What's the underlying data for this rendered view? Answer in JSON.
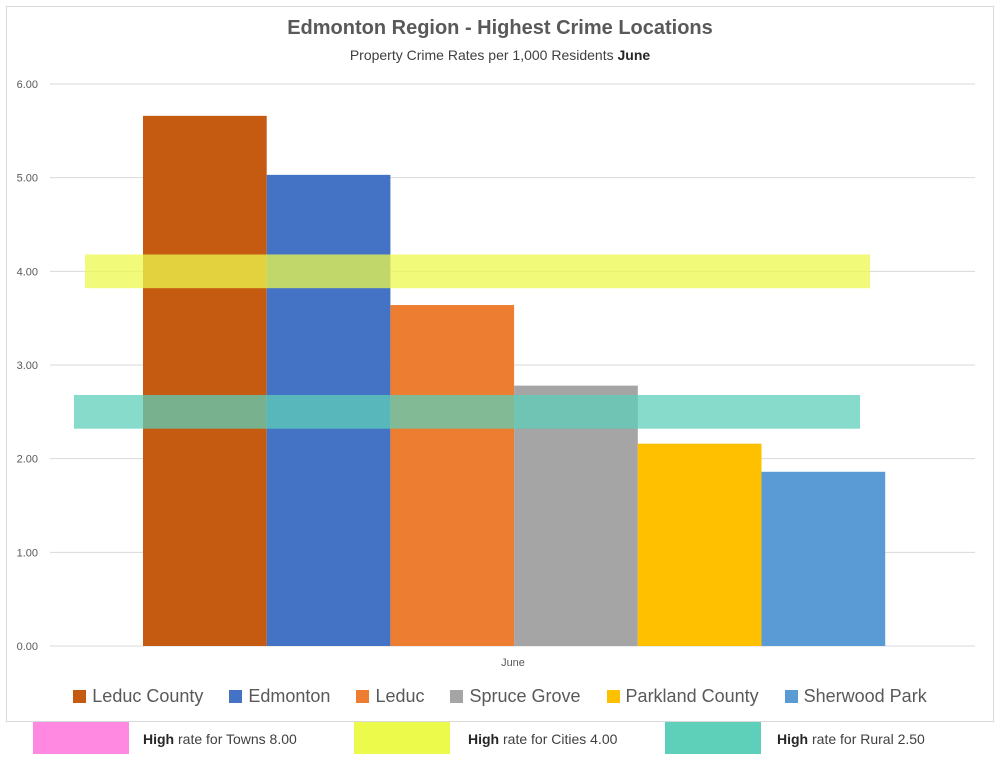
{
  "chart_data": {
    "type": "bar",
    "title": "Edmonton Region - Highest Crime Locations",
    "subtitle_prefix": "Property Crime Rates per 1,000 Residents",
    "subtitle_bold": "June",
    "categories": [
      "June"
    ],
    "ylim": [
      0,
      6
    ],
    "yticks": [
      "0.00",
      "1.00",
      "2.00",
      "3.00",
      "4.00",
      "5.00",
      "6.00"
    ],
    "grid": true,
    "legend_position": "bottom",
    "series": [
      {
        "name": "Leduc County",
        "values": [
          5.66
        ],
        "color": "#c55a11"
      },
      {
        "name": "Edmonton",
        "values": [
          5.03
        ],
        "color": "#4472c4"
      },
      {
        "name": "Leduc",
        "values": [
          3.64
        ],
        "color": "#ed7d31"
      },
      {
        "name": "Spruce Grove",
        "values": [
          2.78
        ],
        "color": "#a5a5a5"
      },
      {
        "name": "Parkland County",
        "values": [
          2.16
        ],
        "color": "#ffc000"
      },
      {
        "name": "Sherwood Park",
        "values": [
          1.86
        ],
        "color": "#5b9bd5"
      }
    ],
    "threshold_bands": [
      {
        "label_bold": "High",
        "label_rest": "rate for Towns 8.00",
        "value": 8.0,
        "color": "#ff89e0",
        "shown_on_chart": false
      },
      {
        "label_bold": "High",
        "label_rest": "rate for Cities 4.00",
        "value": 4.0,
        "color": "#ecfa4c",
        "shown_on_chart": true
      },
      {
        "label_bold": "High",
        "label_rest": "rate for Rural 2.50",
        "value": 2.5,
        "color": "#5ecfb8",
        "shown_on_chart": true
      }
    ]
  }
}
